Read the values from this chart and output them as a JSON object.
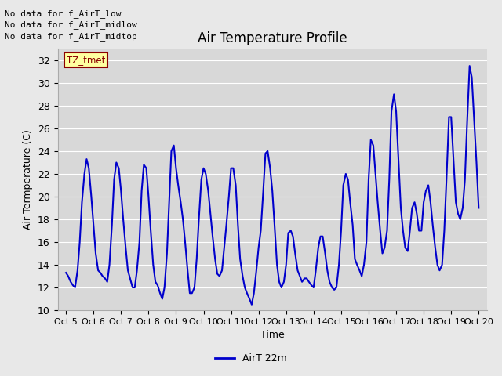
{
  "title": "Air Temperature Profile",
  "xlabel": "Time",
  "ylabel": "Air Termperature (C)",
  "ylim": [
    10,
    33
  ],
  "yticks": [
    10,
    12,
    14,
    16,
    18,
    20,
    22,
    24,
    26,
    28,
    30,
    32
  ],
  "line_color": "#0000cc",
  "legend_label": "AirT 22m",
  "annotations": [
    "No data for f_AirT_low",
    "No data for f_AirT_midlow",
    "No data for f_AirT_midtop"
  ],
  "tz_label": "TZ_tmet",
  "x_labels": [
    "Oct 5",
    "Oct 6",
    "Oct 7",
    "Oct 8",
    "Oct 9",
    "Oct 10",
    "Oct 11",
    "Oct 12",
    "Oct 13",
    "Oct 14",
    "Oct 15",
    "Oct 16",
    "Oct 17",
    "Oct 18",
    "Oct 19",
    "Oct 20"
  ],
  "x_values": [
    0,
    1,
    2,
    3,
    4,
    5,
    6,
    7,
    8,
    9,
    10,
    11,
    12,
    13,
    14,
    15
  ],
  "time_series": {
    "x": [
      0.0,
      0.08,
      0.17,
      0.25,
      0.33,
      0.42,
      0.5,
      0.58,
      0.67,
      0.75,
      0.83,
      0.92,
      1.0,
      1.08,
      1.17,
      1.25,
      1.33,
      1.42,
      1.5,
      1.58,
      1.67,
      1.75,
      1.83,
      1.92,
      2.0,
      2.08,
      2.17,
      2.25,
      2.33,
      2.42,
      2.5,
      2.58,
      2.67,
      2.75,
      2.83,
      2.92,
      3.0,
      3.08,
      3.17,
      3.25,
      3.33,
      3.42,
      3.5,
      3.58,
      3.67,
      3.75,
      3.83,
      3.92,
      4.0,
      4.08,
      4.17,
      4.25,
      4.33,
      4.42,
      4.5,
      4.58,
      4.67,
      4.75,
      4.83,
      4.92,
      5.0,
      5.08,
      5.17,
      5.25,
      5.33,
      5.42,
      5.5,
      5.58,
      5.67,
      5.75,
      5.83,
      5.92,
      6.0,
      6.08,
      6.17,
      6.25,
      6.33,
      6.42,
      6.5,
      6.58,
      6.67,
      6.75,
      6.83,
      6.92,
      7.0,
      7.08,
      7.17,
      7.25,
      7.33,
      7.42,
      7.5,
      7.58,
      7.67,
      7.75,
      7.83,
      7.92,
      8.0,
      8.08,
      8.17,
      8.25,
      8.33,
      8.42,
      8.5,
      8.58,
      8.67,
      8.75,
      8.83,
      8.92,
      9.0,
      9.08,
      9.17,
      9.25,
      9.33,
      9.42,
      9.5,
      9.58,
      9.67,
      9.75,
      9.83,
      9.92,
      10.0,
      10.08,
      10.17,
      10.25,
      10.33,
      10.42,
      10.5,
      10.58,
      10.67,
      10.75,
      10.83,
      10.92,
      11.0,
      11.08,
      11.17,
      11.25,
      11.33,
      11.42,
      11.5,
      11.58,
      11.67,
      11.75,
      11.83,
      11.92,
      12.0,
      12.08,
      12.17,
      12.25,
      12.33,
      12.42,
      12.5,
      12.58,
      12.67,
      12.75,
      12.83,
      12.92,
      13.0,
      13.08,
      13.17,
      13.25,
      13.33,
      13.42,
      13.5,
      13.58,
      13.67,
      13.75,
      13.83,
      13.92,
      14.0,
      14.08,
      14.17,
      14.25,
      14.33,
      14.42,
      14.5,
      14.58,
      14.67,
      14.75,
      14.83,
      14.92,
      15.0
    ],
    "y": [
      13.3,
      13.0,
      12.5,
      12.2,
      12.0,
      13.5,
      16.0,
      19.5,
      22.0,
      23.3,
      22.5,
      20.0,
      17.5,
      15.0,
      13.5,
      13.3,
      13.0,
      12.8,
      12.5,
      14.0,
      17.5,
      21.5,
      23.0,
      22.5,
      20.5,
      18.0,
      15.5,
      13.5,
      12.8,
      12.0,
      12.0,
      13.5,
      16.0,
      20.5,
      22.8,
      22.5,
      20.0,
      17.0,
      14.0,
      12.5,
      12.2,
      11.5,
      11.0,
      12.0,
      15.0,
      19.5,
      24.0,
      24.5,
      22.5,
      21.0,
      19.5,
      18.0,
      16.0,
      13.5,
      11.5,
      11.5,
      12.0,
      14.5,
      18.0,
      21.5,
      22.5,
      22.0,
      20.5,
      18.5,
      16.5,
      14.5,
      13.2,
      13.0,
      13.5,
      15.5,
      17.5,
      20.0,
      22.5,
      22.5,
      21.0,
      17.5,
      14.5,
      13.0,
      12.0,
      11.5,
      11.0,
      10.5,
      11.5,
      13.5,
      15.5,
      17.0,
      20.5,
      23.8,
      24.0,
      22.5,
      20.5,
      17.5,
      14.0,
      12.5,
      12.0,
      12.5,
      14.0,
      16.8,
      17.0,
      16.5,
      15.0,
      13.5,
      13.0,
      12.5,
      12.8,
      12.8,
      12.5,
      12.2,
      12.0,
      13.5,
      15.5,
      16.5,
      16.5,
      15.0,
      13.5,
      12.5,
      12.0,
      11.8,
      12.0,
      14.0,
      17.0,
      21.0,
      22.0,
      21.5,
      19.5,
      17.5,
      14.5,
      14.0,
      13.5,
      13.0,
      14.0,
      16.0,
      21.5,
      25.0,
      24.5,
      22.0,
      19.5,
      17.0,
      15.0,
      15.5,
      17.0,
      21.5,
      27.5,
      29.0,
      27.5,
      23.5,
      19.0,
      17.0,
      15.5,
      15.2,
      17.0,
      19.0,
      19.5,
      18.5,
      17.0,
      17.0,
      19.5,
      20.5,
      21.0,
      19.5,
      17.5,
      15.5,
      14.0,
      13.5,
      14.0,
      17.0,
      21.5,
      27.0,
      27.0,
      23.5,
      19.5,
      18.5,
      18.0,
      19.0,
      21.5,
      26.5,
      31.5,
      30.5,
      27.0,
      23.0,
      19.0
    ]
  }
}
